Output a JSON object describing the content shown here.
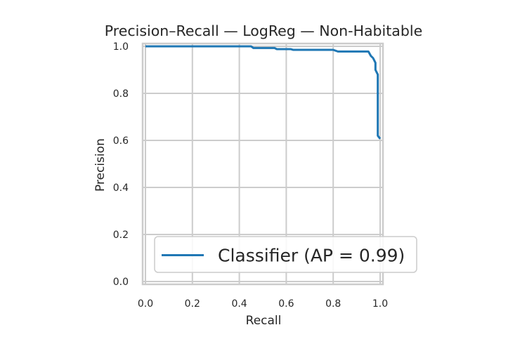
{
  "chart_data": {
    "type": "line",
    "title": "Precision–Recall — LogReg — Non-Habitable",
    "xlabel": "Recall",
    "ylabel": "Precision",
    "xlim": [
      0.0,
      1.0
    ],
    "ylim": [
      0.0,
      1.0
    ],
    "xticks": [
      "0.0",
      "0.2",
      "0.4",
      "0.6",
      "0.8",
      "1.0"
    ],
    "yticks": [
      "0.0",
      "0.2",
      "0.4",
      "0.6",
      "0.8",
      "1.0"
    ],
    "grid": true,
    "legend_position": "lower-right",
    "series": [
      {
        "name": "Classifier (AP = 0.99)",
        "color": "#1f77b4",
        "x": [
          0.0,
          0.3,
          0.45,
          0.46,
          0.55,
          0.56,
          0.62,
          0.63,
          0.8,
          0.82,
          0.95,
          0.96,
          0.97,
          0.98,
          0.98,
          0.99,
          0.99,
          1.0
        ],
        "y": [
          1.0,
          1.0,
          1.0,
          0.993,
          0.993,
          0.988,
          0.988,
          0.985,
          0.985,
          0.978,
          0.978,
          0.96,
          0.95,
          0.93,
          0.9,
          0.88,
          0.62,
          0.607
        ]
      }
    ]
  }
}
